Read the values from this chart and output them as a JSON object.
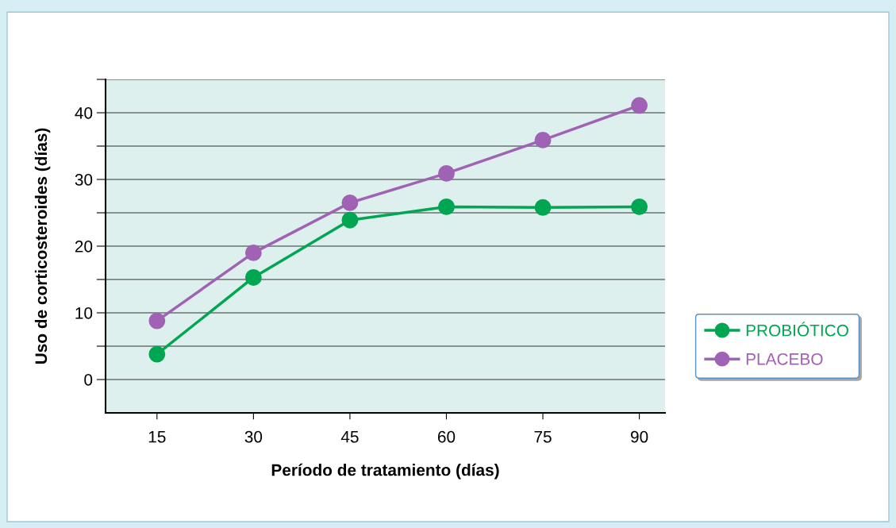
{
  "chart_data": {
    "type": "line",
    "xlabel": "Período de tratamiento (días)",
    "ylabel": "Uso de corticosteroides (días)",
    "x": [
      15,
      30,
      45,
      60,
      75,
      90
    ],
    "series": [
      {
        "name": "PROBIÓTICO",
        "color": "#00a651",
        "values": [
          3.8,
          15.3,
          23.9,
          25.9,
          25.8,
          25.9
        ]
      },
      {
        "name": "PLACEBO",
        "color": "#a062b4",
        "values": [
          8.8,
          19.0,
          26.5,
          30.9,
          35.9,
          41.1
        ]
      }
    ],
    "xlim": [
      7,
      94
    ],
    "xticks": [
      15,
      30,
      45,
      60,
      75,
      90
    ],
    "ylim": [
      -5,
      45
    ],
    "yticks": [
      0,
      {
        "value": 5,
        "label": null
      },
      10,
      {
        "value": 15,
        "label": null
      },
      20,
      {
        "value": 25,
        "label": null
      },
      30,
      {
        "value": 35,
        "label": null
      },
      40,
      {
        "value": 45,
        "label": null
      }
    ],
    "grid": "y",
    "legend": "right",
    "marker": "circle",
    "line_style": "solid"
  }
}
